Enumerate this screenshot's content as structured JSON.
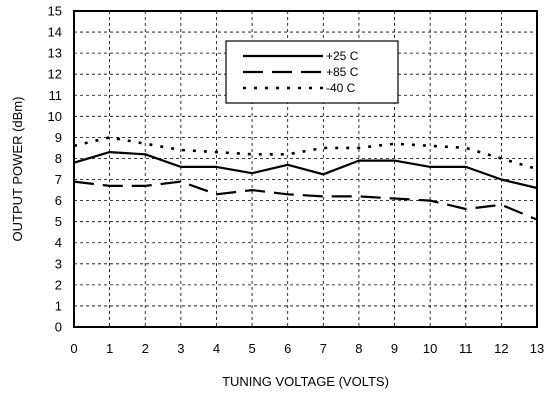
{
  "chart_data": {
    "type": "line",
    "title": "",
    "xlabel": "TUNING VOLTAGE (VOLTS)",
    "ylabel": "OUTPUT POWER (dBm)",
    "xlim": [
      0,
      13
    ],
    "ylim": [
      0,
      15
    ],
    "x_ticks": [
      0,
      1,
      2,
      3,
      4,
      5,
      6,
      7,
      8,
      9,
      10,
      11,
      12,
      13
    ],
    "y_ticks": [
      0,
      1,
      2,
      3,
      4,
      5,
      6,
      7,
      8,
      9,
      10,
      11,
      12,
      13,
      14,
      15
    ],
    "grid": true,
    "legend_position": "top-center",
    "series": [
      {
        "name": "+25 C",
        "style": "solid",
        "x": [
          0,
          1,
          2,
          3,
          4,
          5,
          6,
          7,
          8,
          9,
          10,
          11,
          12,
          13
        ],
        "values": [
          7.8,
          8.3,
          8.2,
          7.6,
          7.6,
          7.3,
          7.7,
          7.25,
          7.9,
          7.9,
          7.6,
          7.6,
          7.0,
          6.6
        ]
      },
      {
        "name": "+85 C",
        "style": "long-dash",
        "x": [
          0,
          1,
          2,
          3,
          4,
          5,
          6,
          7,
          8,
          9,
          10,
          11,
          12,
          13
        ],
        "values": [
          6.9,
          6.7,
          6.7,
          6.9,
          6.3,
          6.5,
          6.3,
          6.2,
          6.2,
          6.1,
          6.0,
          5.6,
          5.8,
          5.1
        ]
      },
      {
        "name": "-40 C",
        "style": "dotted",
        "x": [
          0,
          1,
          2,
          3,
          4,
          5,
          6,
          7,
          8,
          9,
          10,
          11,
          12,
          13
        ],
        "values": [
          8.6,
          9.0,
          8.7,
          8.4,
          8.3,
          8.2,
          8.2,
          8.5,
          8.5,
          8.7,
          8.6,
          8.5,
          8.0,
          7.5
        ]
      }
    ]
  }
}
